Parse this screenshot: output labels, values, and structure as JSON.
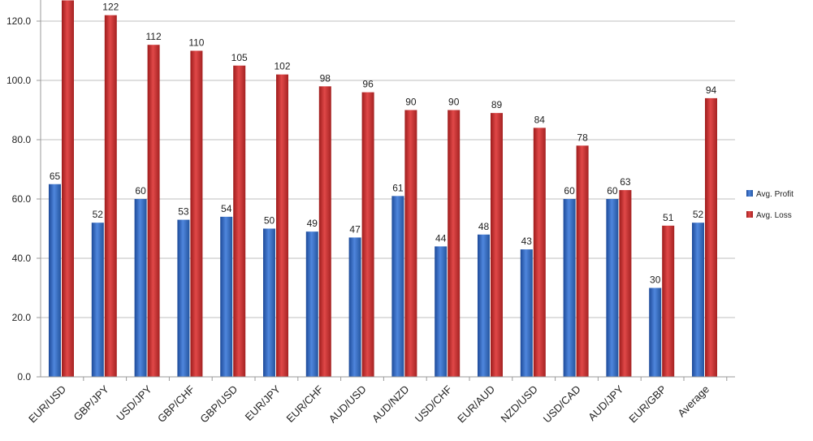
{
  "chart_data": {
    "type": "bar",
    "title": "",
    "xlabel": "",
    "ylabel": "",
    "ylim": [
      0,
      140
    ],
    "yticks": [
      "0.0",
      "20.0",
      "40.0",
      "60.0",
      "80.0",
      "100.0",
      "120.0"
    ],
    "grid": true,
    "legend_position": "right",
    "categories": [
      "EUR/USD",
      "GBP/JPY",
      "USD/JPY",
      "GBP/CHF",
      "GBP/USD",
      "EUR/JPY",
      "EUR/CHF",
      "AUD/USD",
      "AUD/NZD",
      "USD/CHF",
      "EUR/AUD",
      "NZD/USD",
      "USD/CAD",
      "AUD/JPY",
      "EUR/GBP",
      "Average"
    ],
    "series": [
      {
        "name": "Avg. Profit",
        "color": "#3a6fc4",
        "values": [
          65,
          52,
          60,
          53,
          54,
          50,
          49,
          47,
          61,
          44,
          48,
          43,
          60,
          60,
          30,
          52
        ]
      },
      {
        "name": "Avg. Loss",
        "color": "#c83232",
        "values": [
          127,
          122,
          112,
          110,
          105,
          102,
          98,
          96,
          90,
          90,
          89,
          84,
          78,
          63,
          51,
          94
        ]
      }
    ]
  }
}
